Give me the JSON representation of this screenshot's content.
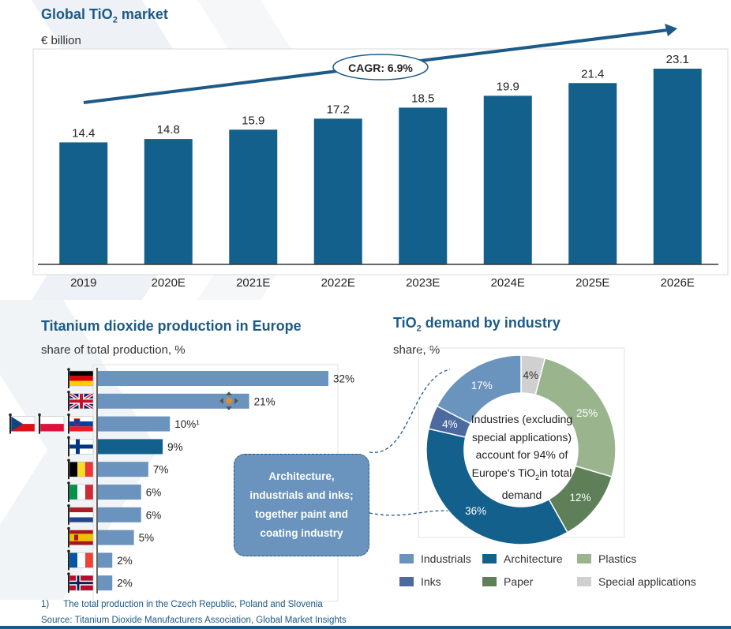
{
  "colors": {
    "title": "#1d5a86",
    "bar_dark": "#14608d",
    "bar_light": "#6a93bd",
    "arrow": "#1d5a86",
    "callout_fill": "#6a93bd"
  },
  "top": {
    "title": "Global TiO",
    "title_sub": "2",
    "title_tail": " market",
    "unit": "€ billion",
    "cagr": "CAGR: 6.9%"
  },
  "europe": {
    "title": "Titanium dioxide production in Europe",
    "unit": "share of total production, %",
    "countries": [
      "germany-flag-icon",
      "uk-flag-icon",
      "slovenia-flag-icon",
      "finland-flag-icon",
      "belgium-flag-icon",
      "italy-flag-icon",
      "netherlands-flag-icon",
      "spain-flag-icon",
      "france-flag-icon",
      "norway-flag-icon"
    ],
    "extra_flags": [
      "czech-flag-icon",
      "poland-flag-icon"
    ],
    "callout": "Architecture, industrials and inks; together paint and coating industry"
  },
  "demand": {
    "title": "TiO",
    "title_sub": "2",
    "title_tail": " demand by industry",
    "unit": "share, %",
    "center_pre": "Industries (excluding special applications) account for 94% of Europe's TiO",
    "center_sub": "2",
    "center_post": "in total demand"
  },
  "footnotes": {
    "note_num": "1)",
    "note": "The total production in the Czech Republic, Poland and Slovenia",
    "source": "Source: Titanium Dioxide Manufacturers Association, Global Market Insights"
  },
  "chart_data": [
    {
      "type": "bar",
      "title": "Global TiO2 market",
      "ylabel": "€ billion",
      "categories": [
        "2019",
        "2020E",
        "2021E",
        "2022E",
        "2023E",
        "2024E",
        "2025E",
        "2026E"
      ],
      "values": [
        14.4,
        14.8,
        15.9,
        17.2,
        18.5,
        19.9,
        21.4,
        23.1
      ],
      "value_labels": [
        "14.4",
        "14.8",
        "15.9",
        "17.2",
        "18.5",
        "19.9",
        "21.4",
        "23.1"
      ],
      "annotation": "CAGR: 6.9%"
    },
    {
      "type": "bar",
      "orientation": "horizontal",
      "title": "Titanium dioxide production in Europe",
      "xlabel": "share of total production, %",
      "values": [
        32,
        21,
        10,
        9,
        7,
        6,
        6,
        5,
        2,
        2
      ],
      "value_labels": [
        "32%",
        "21%",
        "10%¹",
        "9%",
        "7%",
        "6%",
        "6%",
        "5%",
        "2%",
        "2%"
      ],
      "highlight_index": 3
    },
    {
      "type": "pie",
      "title": "TiO2 demand by industry",
      "unit": "share, %",
      "slices": [
        {
          "name": "Special applications",
          "value": 4,
          "label": "4%",
          "color": "#d0d0d0"
        },
        {
          "name": "Plastics",
          "value": 25,
          "label": "25%",
          "color": "#9ab58e"
        },
        {
          "name": "Paper",
          "value": 12,
          "label": "12%",
          "color": "#5e7f58"
        },
        {
          "name": "Architecture",
          "value": 36,
          "label": "36%",
          "color": "#14608d"
        },
        {
          "name": "Inks",
          "value": 4,
          "label": "4%",
          "color": "#4d6aa0"
        },
        {
          "name": "Industrials",
          "value": 17,
          "label": "17%",
          "color": "#6a93bd"
        }
      ],
      "legend": [
        "Industrials",
        "Architecture",
        "Plastics",
        "Inks",
        "Paper",
        "Special applications"
      ]
    }
  ]
}
